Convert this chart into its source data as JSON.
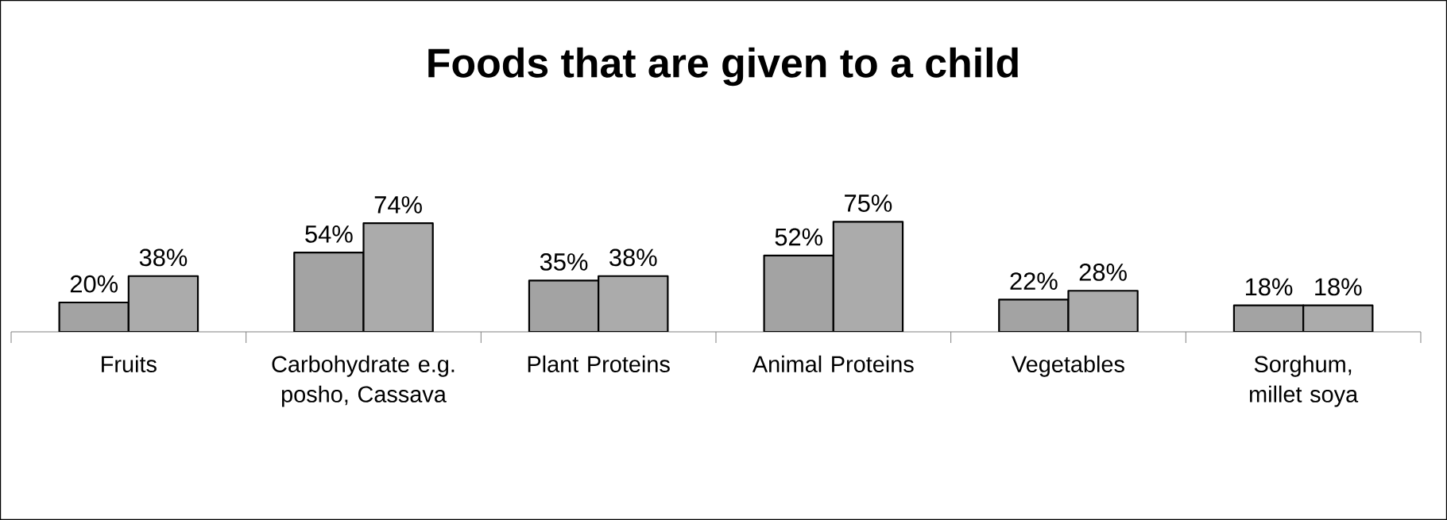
{
  "chart_data": {
    "type": "bar",
    "title": "Foods that are given to a child",
    "categories": [
      "Fruits",
      "Carbohydrate e.g. posho, Cassava",
      "Plant Proteins",
      "Animal Proteins",
      "Vegetables",
      "Sorghum, millet soya"
    ],
    "series": [
      {
        "color": "#a3a3a3",
        "values": [
          20,
          54,
          35,
          52,
          22,
          18
        ],
        "value_labels": [
          "20%",
          "54%",
          "35%",
          "52%",
          "22%",
          "18%"
        ]
      },
      {
        "color": "#ababab",
        "values": [
          38,
          74,
          38,
          75,
          28,
          18
        ],
        "value_labels": [
          "38%",
          "74%",
          "38%",
          "75%",
          "28%",
          "18%"
        ]
      }
    ],
    "tick_labels": "x"
  }
}
